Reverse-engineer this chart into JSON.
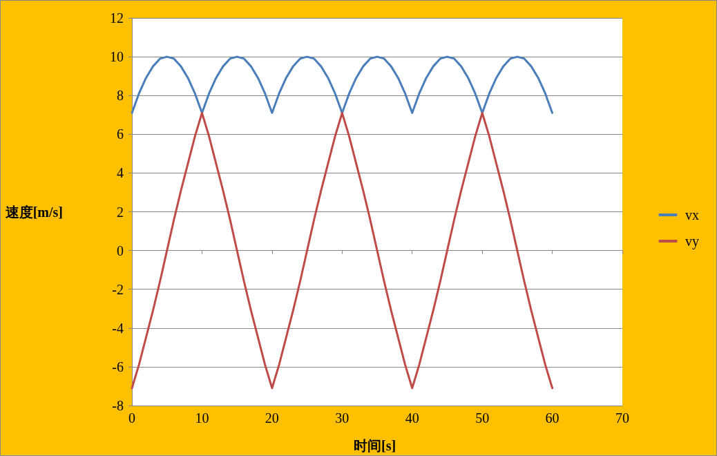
{
  "chart_data": {
    "type": "line",
    "xlabel": "时间[s]",
    "ylabel": "速度[m/s]",
    "x": [
      0,
      1,
      2,
      3,
      4,
      5,
      6,
      7,
      8,
      9,
      10,
      11,
      12,
      13,
      14,
      15,
      16,
      17,
      18,
      19,
      20,
      21,
      22,
      23,
      24,
      25,
      26,
      27,
      28,
      29,
      30,
      31,
      32,
      33,
      34,
      35,
      36,
      37,
      38,
      39,
      40,
      41,
      42,
      43,
      44,
      45,
      46,
      47,
      48,
      49,
      50,
      51,
      52,
      53,
      54,
      55,
      56,
      57,
      58,
      59,
      60
    ],
    "series": [
      {
        "name": "vx",
        "color": "#4a7ebb",
        "values": [
          7.1,
          8.1,
          8.9,
          9.5,
          9.9,
          10,
          9.9,
          9.5,
          8.9,
          8.1,
          7.1,
          8.1,
          8.9,
          9.5,
          9.9,
          10,
          9.9,
          9.5,
          8.9,
          8.1,
          7.1,
          8.1,
          8.9,
          9.5,
          9.9,
          10,
          9.9,
          9.5,
          8.9,
          8.1,
          7.1,
          8.1,
          8.9,
          9.5,
          9.9,
          10,
          9.9,
          9.5,
          8.9,
          8.1,
          7.1,
          8.1,
          8.9,
          9.5,
          9.9,
          10,
          9.9,
          9.5,
          8.9,
          8.1,
          7.1,
          8.1,
          8.9,
          9.5,
          9.9,
          10,
          9.9,
          9.5,
          8.9,
          8.1,
          7.1
        ]
      },
      {
        "name": "vy",
        "color": "#be4b48",
        "values": [
          -7.1,
          -5.9,
          -4.5,
          -3.1,
          -1.6,
          0,
          1.6,
          3.1,
          4.5,
          5.9,
          7.1,
          5.9,
          4.5,
          3.1,
          1.6,
          0,
          -1.6,
          -3.1,
          -4.5,
          -5.9,
          -7.1,
          -5.9,
          -4.5,
          -3.1,
          -1.6,
          0,
          1.6,
          3.1,
          4.5,
          5.9,
          7.1,
          5.9,
          4.5,
          3.1,
          1.6,
          0,
          -1.6,
          -3.1,
          -4.5,
          -5.9,
          -7.1,
          -5.9,
          -4.5,
          -3.1,
          -1.6,
          0,
          1.6,
          3.1,
          4.5,
          5.9,
          7.1,
          5.9,
          4.5,
          3.1,
          1.6,
          0,
          -1.6,
          -3.1,
          -4.5,
          -5.9,
          -7.1
        ]
      }
    ],
    "xlim": [
      0,
      70
    ],
    "xticks": [
      0,
      10,
      20,
      30,
      40,
      50,
      60,
      70
    ],
    "ylim": [
      -8,
      12
    ],
    "yticks": [
      -8,
      -6,
      -4,
      -2,
      0,
      2,
      4,
      6,
      8,
      10,
      12
    ],
    "grid": "y",
    "legend": "right",
    "marker": "none",
    "line_style": "solid"
  }
}
